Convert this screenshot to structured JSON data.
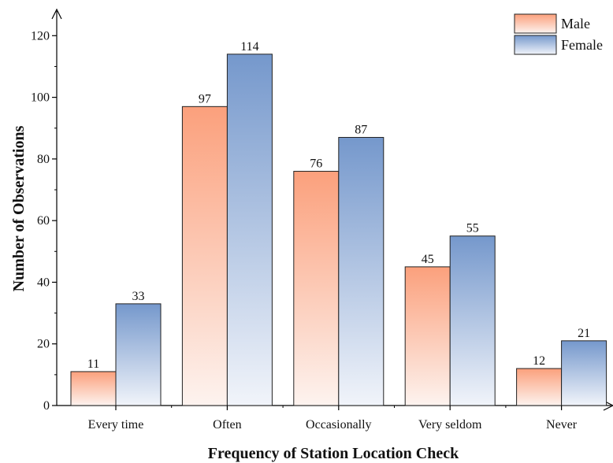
{
  "chart_data": {
    "type": "bar",
    "title": "",
    "xlabel": "Frequency of Station Location Check",
    "ylabel": "Number of Observations",
    "categories": [
      "Every time",
      "Often",
      "Occasionally",
      "Very seldom",
      "Never"
    ],
    "series": [
      {
        "name": "Male",
        "values": [
          11,
          97,
          76,
          45,
          12
        ],
        "color_top": "#fba07c",
        "color_bottom": "#fdf3ef"
      },
      {
        "name": "Female",
        "values": [
          33,
          114,
          87,
          55,
          21
        ],
        "color_top": "#7598cc",
        "color_bottom": "#f1f4fa"
      }
    ],
    "ylim": [
      0,
      128
    ],
    "yticks": [
      0,
      20,
      40,
      60,
      80,
      100,
      120
    ],
    "yticks_labels": [
      "0",
      "20",
      "40",
      "60",
      "80",
      "100",
      "120"
    ],
    "grid": false,
    "legend_position": "top-right",
    "data_labels": true
  }
}
